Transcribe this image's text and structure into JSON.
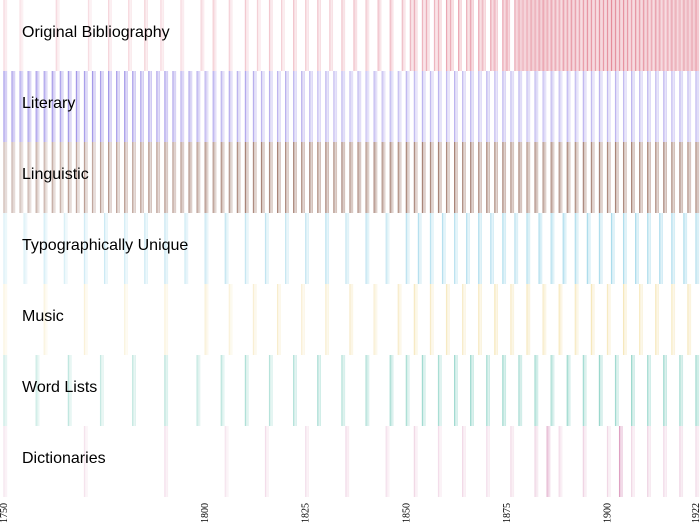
{
  "chart_data": {
    "type": "heatmap",
    "title": "",
    "xlabel": "",
    "ylabel": "",
    "xlim": [
      1750,
      1922
    ],
    "x_ticks": [
      1750,
      1800,
      1825,
      1850,
      1875,
      1900,
      1922
    ],
    "x_tick_labels": [
      "1750",
      "1800",
      "1825",
      "1850",
      "1875",
      "1900",
      "1922"
    ],
    "rows": [
      {
        "name": "Original Bibliography",
        "color": "#e0788a",
        "years": [
          1750,
          1754,
          1763,
          1771,
          1776,
          1781,
          1785,
          1789,
          1794,
          1799,
          1802,
          1806,
          1810,
          1813,
          1816,
          1819,
          1822,
          1825,
          1828,
          1831,
          1834,
          1837,
          1840,
          1843,
          1846,
          1849,
          1851,
          1852,
          1854,
          1855,
          1857,
          1858,
          1860,
          1861,
          1863,
          1865,
          1866,
          1868,
          1869,
          1871,
          1872,
          1874,
          1875,
          1877,
          1878,
          1879,
          1880,
          1881,
          1882,
          1883,
          1884,
          1885,
          1886,
          1887,
          1888,
          1889,
          1890,
          1891,
          1892,
          1893,
          1894,
          1895,
          1896,
          1897,
          1898,
          1899,
          1900,
          1901,
          1902,
          1903,
          1904,
          1905,
          1906,
          1907,
          1908,
          1909,
          1910,
          1911,
          1912,
          1913,
          1914,
          1915,
          1916,
          1917,
          1918,
          1919,
          1920,
          1921,
          1922
        ],
        "intensity": [
          0.3,
          0.25,
          0.3,
          0.25,
          0.3,
          0.3,
          0.35,
          0.3,
          0.3,
          0.35,
          0.4,
          0.35,
          0.4,
          0.35,
          0.4,
          0.35,
          0.45,
          0.4,
          0.45,
          0.4,
          0.45,
          0.5,
          0.45,
          0.5,
          0.55,
          0.5,
          0.55,
          0.6,
          0.55,
          0.6,
          0.55,
          0.6,
          0.65,
          0.6,
          0.65,
          0.6,
          0.7,
          0.65,
          0.6,
          0.7,
          0.65,
          0.7,
          0.75,
          0.7,
          0.75,
          0.7,
          0.75,
          0.8,
          0.75,
          0.8,
          0.85,
          0.75,
          0.8,
          0.75,
          0.7,
          0.8,
          0.75,
          0.8,
          0.75,
          0.7,
          0.75,
          0.8,
          0.75,
          0.7,
          0.8,
          0.75,
          0.8,
          0.85,
          0.8,
          0.75,
          0.8,
          0.75,
          0.7,
          0.8,
          0.75,
          0.8,
          0.75,
          0.7,
          0.8,
          0.75,
          0.7,
          0.75,
          0.8,
          0.75,
          0.7,
          0.8,
          0.75,
          0.8,
          0.85
        ]
      },
      {
        "name": "Literary",
        "color": "#9b8ee6",
        "years": [
          1750,
          1752,
          1754,
          1756,
          1758,
          1760,
          1762,
          1764,
          1766,
          1768,
          1770,
          1772,
          1774,
          1776,
          1778,
          1780,
          1782,
          1784,
          1786,
          1788,
          1790,
          1792,
          1794,
          1796,
          1798,
          1800,
          1802,
          1804,
          1806,
          1808,
          1810,
          1812,
          1814,
          1816,
          1818,
          1820,
          1822,
          1824,
          1826,
          1828,
          1830,
          1832,
          1834,
          1836,
          1838,
          1840,
          1842,
          1844,
          1846,
          1848,
          1850,
          1852,
          1854,
          1856,
          1858,
          1860,
          1862,
          1864,
          1866,
          1868,
          1870,
          1872,
          1874,
          1876,
          1878,
          1880,
          1882,
          1884,
          1886,
          1888,
          1890,
          1892,
          1894,
          1896,
          1898,
          1900,
          1902,
          1904,
          1906,
          1908,
          1910,
          1912,
          1914,
          1916,
          1918,
          1920,
          1922
        ],
        "intensity": [
          0.9,
          0.9,
          0.85,
          0.9,
          0.9,
          0.85,
          0.9,
          0.85,
          0.9,
          0.9,
          0.85,
          0.9,
          0.85,
          0.9,
          0.85,
          0.9,
          0.85,
          0.8,
          0.85,
          0.8,
          0.85,
          0.8,
          0.75,
          0.8,
          0.75,
          0.7,
          0.75,
          0.7,
          0.75,
          0.7,
          0.75,
          0.7,
          0.65,
          0.7,
          0.65,
          0.7,
          0.65,
          0.7,
          0.65,
          0.6,
          0.65,
          0.6,
          0.65,
          0.6,
          0.65,
          0.6,
          0.65,
          0.6,
          0.65,
          0.6,
          0.65,
          0.6,
          0.65,
          0.6,
          0.65,
          0.6,
          0.65,
          0.6,
          0.65,
          0.6,
          0.65,
          0.6,
          0.65,
          0.6,
          0.65,
          0.6,
          0.65,
          0.6,
          0.65,
          0.6,
          0.65,
          0.6,
          0.65,
          0.6,
          0.65,
          0.6,
          0.65,
          0.6,
          0.65,
          0.6,
          0.65,
          0.6,
          0.65,
          0.6,
          0.65,
          0.6,
          0.65
        ]
      },
      {
        "name": "Linguistic",
        "color": "#a0786a",
        "years": [
          1750,
          1752,
          1754,
          1756,
          1758,
          1760,
          1762,
          1764,
          1766,
          1768,
          1770,
          1772,
          1774,
          1776,
          1778,
          1780,
          1782,
          1784,
          1786,
          1788,
          1790,
          1792,
          1794,
          1796,
          1798,
          1800,
          1802,
          1804,
          1806,
          1808,
          1810,
          1812,
          1814,
          1816,
          1818,
          1820,
          1822,
          1824,
          1826,
          1828,
          1830,
          1832,
          1834,
          1836,
          1838,
          1840,
          1842,
          1844,
          1846,
          1848,
          1850,
          1852,
          1854,
          1856,
          1858,
          1860,
          1862,
          1864,
          1866,
          1868,
          1870,
          1872,
          1874,
          1876,
          1878,
          1880,
          1882,
          1884,
          1886,
          1888,
          1890,
          1892,
          1894,
          1896,
          1898,
          1900,
          1902,
          1904,
          1906,
          1908,
          1910,
          1912,
          1914,
          1916,
          1918,
          1920,
          1922
        ],
        "intensity": [
          0.55,
          0.6,
          0.55,
          0.6,
          0.65,
          0.6,
          0.65,
          0.6,
          0.7,
          0.65,
          0.7,
          0.65,
          0.7,
          0.75,
          0.7,
          0.75,
          0.7,
          0.75,
          0.8,
          0.75,
          0.8,
          0.75,
          0.8,
          0.85,
          0.8,
          0.85,
          0.8,
          0.85,
          0.8,
          0.85,
          0.9,
          0.85,
          0.9,
          0.85,
          0.9,
          0.85,
          0.9,
          0.85,
          0.9,
          0.85,
          0.9,
          0.85,
          0.9,
          0.85,
          0.9,
          0.85,
          0.9,
          0.85,
          0.9,
          0.85,
          0.9,
          0.85,
          0.9,
          0.85,
          0.9,
          0.85,
          0.9,
          0.85,
          0.9,
          0.85,
          0.9,
          0.85,
          0.9,
          0.85,
          0.9,
          0.85,
          0.9,
          0.85,
          0.9,
          0.85,
          0.9,
          0.85,
          0.9,
          0.85,
          0.9,
          0.85,
          0.9,
          0.85,
          0.9,
          0.85,
          0.9,
          0.85,
          0.9,
          0.85,
          0.9,
          0.85,
          0.9
        ]
      },
      {
        "name": "Typographically Unique",
        "color": "#8fd0e6",
        "years": [
          1750,
          1755,
          1760,
          1765,
          1770,
          1775,
          1780,
          1785,
          1790,
          1795,
          1800,
          1805,
          1810,
          1815,
          1820,
          1825,
          1830,
          1835,
          1840,
          1845,
          1850,
          1853,
          1856,
          1859,
          1862,
          1865,
          1868,
          1871,
          1874,
          1877,
          1880,
          1883,
          1886,
          1889,
          1892,
          1895,
          1898,
          1901,
          1904,
          1907,
          1910,
          1913,
          1916,
          1919,
          1922
        ],
        "intensity": [
          0.35,
          0.35,
          0.4,
          0.35,
          0.4,
          0.45,
          0.4,
          0.45,
          0.5,
          0.45,
          0.5,
          0.55,
          0.5,
          0.55,
          0.5,
          0.55,
          0.6,
          0.55,
          0.6,
          0.55,
          0.6,
          0.65,
          0.6,
          0.65,
          0.6,
          0.65,
          0.7,
          0.65,
          0.7,
          0.65,
          0.7,
          0.75,
          0.7,
          0.75,
          0.7,
          0.75,
          0.7,
          0.75,
          0.7,
          0.75,
          0.7,
          0.75,
          0.7,
          0.75,
          0.7
        ]
      },
      {
        "name": "Music",
        "color": "#f0d890",
        "years": [
          1750,
          1760,
          1770,
          1780,
          1790,
          1800,
          1806,
          1812,
          1818,
          1824,
          1830,
          1836,
          1842,
          1848,
          1852,
          1856,
          1860,
          1864,
          1868,
          1872,
          1876,
          1880,
          1884,
          1888,
          1892,
          1896,
          1900,
          1904,
          1908,
          1912,
          1916,
          1920
        ],
        "intensity": [
          0.3,
          0.3,
          0.35,
          0.3,
          0.35,
          0.4,
          0.35,
          0.4,
          0.45,
          0.4,
          0.45,
          0.5,
          0.45,
          0.5,
          0.55,
          0.5,
          0.55,
          0.5,
          0.55,
          0.6,
          0.55,
          0.6,
          0.55,
          0.6,
          0.55,
          0.6,
          0.55,
          0.6,
          0.55,
          0.6,
          0.55,
          0.6
        ]
      },
      {
        "name": "Word Lists",
        "color": "#70c8b8",
        "years": [
          1750,
          1758,
          1766,
          1774,
          1782,
          1790,
          1798,
          1804,
          1810,
          1816,
          1822,
          1828,
          1834,
          1840,
          1846,
          1850,
          1854,
          1858,
          1862,
          1866,
          1870,
          1874,
          1878,
          1882,
          1886,
          1890,
          1894,
          1898,
          1902,
          1906,
          1910,
          1914,
          1918,
          1922
        ],
        "intensity": [
          0.4,
          0.4,
          0.45,
          0.4,
          0.45,
          0.5,
          0.45,
          0.5,
          0.55,
          0.5,
          0.55,
          0.6,
          0.55,
          0.6,
          0.65,
          0.6,
          0.65,
          0.6,
          0.65,
          0.7,
          0.65,
          0.7,
          0.65,
          0.7,
          0.65,
          0.7,
          0.65,
          0.7,
          0.65,
          0.7,
          0.65,
          0.7,
          0.65,
          0.7
        ]
      },
      {
        "name": "Dictionaries",
        "color": "#d890b8",
        "years": [
          1750,
          1770,
          1790,
          1805,
          1815,
          1825,
          1835,
          1845,
          1852,
          1858,
          1864,
          1870,
          1876,
          1882,
          1885,
          1888,
          1894,
          1900,
          1903,
          1906,
          1910,
          1914,
          1918,
          1922
        ],
        "intensity": [
          0.25,
          0.25,
          0.3,
          0.25,
          0.3,
          0.3,
          0.35,
          0.3,
          0.35,
          0.3,
          0.35,
          0.3,
          0.35,
          0.4,
          0.7,
          0.35,
          0.4,
          0.35,
          0.85,
          0.35,
          0.4,
          0.35,
          0.4,
          0.35
        ]
      }
    ]
  }
}
